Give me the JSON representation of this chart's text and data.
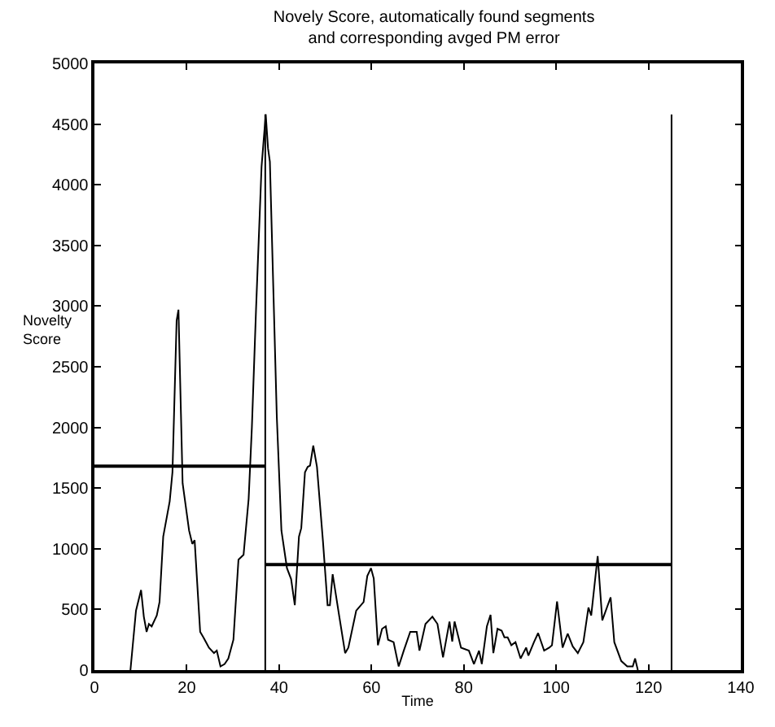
{
  "chart_data": {
    "type": "line",
    "title": "Novely Score, automatically found segments\nand corresponding avged PM error",
    "xlabel": "Time",
    "ylabel": "Novelty\nScore",
    "xlim": [
      0,
      140
    ],
    "xticks": [
      0,
      20,
      40,
      60,
      80,
      100,
      120,
      140
    ],
    "ylim": [
      0,
      5000
    ],
    "yticks": [
      0,
      500,
      1000,
      1500,
      2000,
      2500,
      3000,
      3500,
      4000,
      4500,
      5000
    ],
    "marker": "none",
    "line_style": "solid",
    "series": [
      {
        "color": "#000000",
        "x": [
          7.8,
          9.0,
          10.1,
          10.7,
          11.3,
          11.8,
          12.4,
          13.5,
          14.1,
          14.9,
          16.3,
          16.9,
          17.8,
          18.2,
          19.1,
          20.5,
          21.2,
          21.7,
          22.9,
          23.6,
          24.8,
          25.9,
          26.5,
          27.3,
          28.2,
          29.0,
          30.1,
          31.2,
          32.3,
          33.4,
          34.1,
          35.0,
          36.2,
          37.1,
          37.6,
          38.0,
          39.5,
          40.5,
          41.7,
          42.6,
          43.4,
          44.3,
          44.8,
          45.6,
          46.2,
          46.7,
          47.4,
          48.2,
          49.5,
          50.5,
          51.0,
          51.6,
          53.0,
          54.3,
          55.0,
          56.7,
          58.3,
          59.1,
          59.9,
          60.5,
          61.4,
          62.3,
          63.1,
          63.6,
          64.8,
          65.9,
          67.0,
          68.4,
          69.8,
          70.4,
          71.7,
          73.2,
          74.3,
          75.5,
          76.9,
          77.5,
          78.0,
          79.4,
          81.1,
          82.2,
          83.3,
          83.9,
          85.0,
          85.8,
          86.4,
          87.3,
          88.2,
          88.8,
          89.5,
          90.3,
          91.2,
          92.3,
          93.5,
          94.0,
          95.2,
          96.1,
          97.4,
          98.5,
          99.1,
          100.2,
          101.4,
          102.5,
          103.6,
          104.7,
          105.9,
          107.0,
          107.6,
          109.0,
          110.0,
          111.8,
          112.6,
          114.1,
          115.4,
          116.6,
          117.1,
          117.7
        ],
        "values": [
          0,
          490,
          660,
          440,
          315,
          380,
          360,
          450,
          560,
          1100,
          1390,
          1630,
          2880,
          2970,
          1540,
          1150,
          1040,
          1070,
          315,
          270,
          185,
          140,
          160,
          30,
          50,
          95,
          250,
          910,
          950,
          1410,
          2000,
          2970,
          4150,
          4580,
          4300,
          4190,
          2090,
          1150,
          840,
          750,
          535,
          1100,
          1170,
          1630,
          1675,
          1685,
          1850,
          1675,
          1060,
          535,
          535,
          790,
          450,
          140,
          185,
          490,
          560,
          775,
          840,
          755,
          205,
          340,
          360,
          250,
          230,
          30,
          160,
          315,
          315,
          160,
          380,
          440,
          380,
          105,
          400,
          235,
          400,
          185,
          160,
          50,
          160,
          50,
          360,
          455,
          140,
          340,
          325,
          270,
          270,
          205,
          230,
          95,
          185,
          120,
          230,
          305,
          160,
          185,
          205,
          565,
          185,
          300,
          195,
          140,
          230,
          515,
          450,
          940,
          410,
          600,
          230,
          75,
          30,
          30,
          95,
          0
        ]
      },
      {
        "color": "#000000",
        "x": [
          0,
          37,
          null,
          37,
          125
        ],
        "values": [
          1680,
          1680,
          null,
          870,
          870
        ]
      },
      {
        "color": "#000000",
        "x": [
          37,
          37,
          null,
          125,
          125
        ],
        "values": [
          0,
          4580,
          null,
          0,
          4580
        ]
      }
    ]
  }
}
